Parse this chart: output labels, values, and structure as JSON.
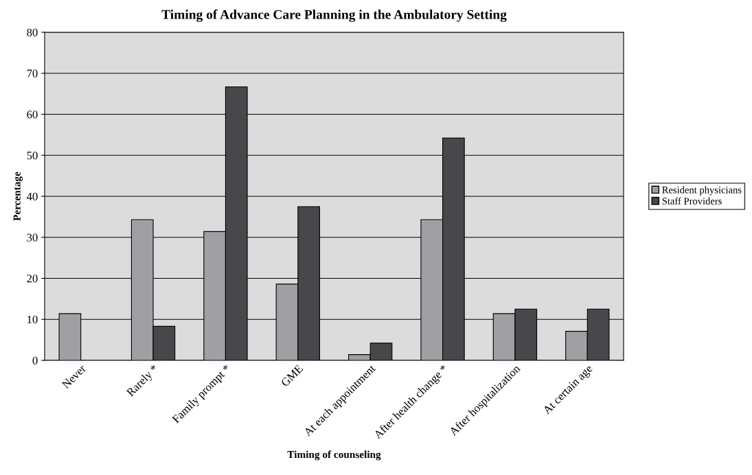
{
  "chart_data": {
    "type": "bar",
    "title": "Timing of Advance Care Planning in the Ambulatory Setting",
    "xlabel": "Timing of counseling",
    "ylabel": "Percentage",
    "categories": [
      "Never",
      "Rarely *",
      "Family prompt *",
      "GME",
      "At each appointment",
      "After health change *",
      "After hospitalization",
      "At certain age"
    ],
    "series": [
      {
        "name": "Resident physicians",
        "color": "#a0a0a4",
        "values": [
          11.4,
          34.3,
          31.4,
          18.6,
          1.4,
          34.3,
          11.4,
          7.1
        ]
      },
      {
        "name": "Staff Providers",
        "color": "#48484c",
        "values": [
          null,
          8.3,
          66.7,
          37.5,
          4.2,
          54.2,
          12.5,
          12.5
        ]
      }
    ],
    "ylim": [
      0,
      80
    ],
    "yticks": [
      0,
      10,
      20,
      30,
      40,
      50,
      60,
      70,
      80
    ],
    "grid": "y",
    "legend": "right"
  }
}
